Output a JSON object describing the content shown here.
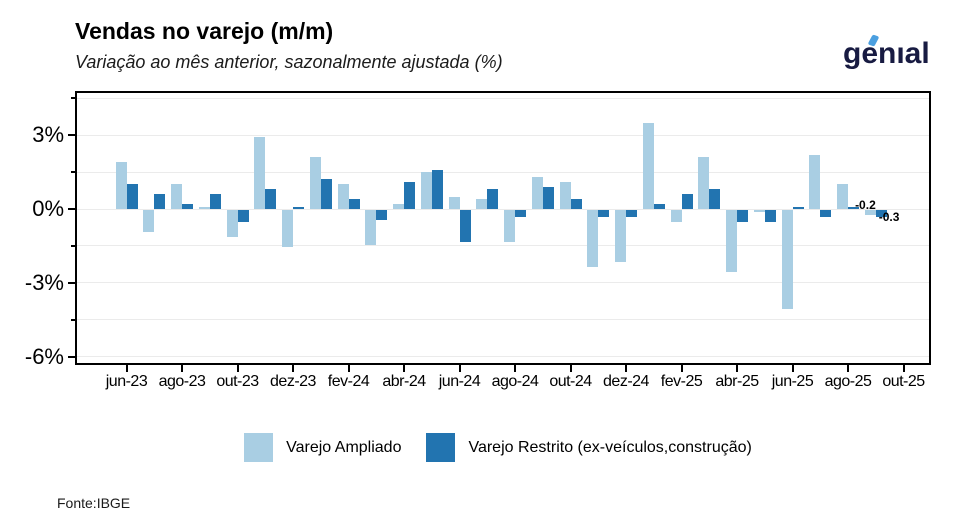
{
  "header": {
    "title": "Vendas no varejo (m/m)",
    "subtitle": "Variação ao mês anterior, sazonalmente ajustada (%)",
    "logo_text": "genıal"
  },
  "footer": {
    "source": "Fonte:IBGE"
  },
  "colors": {
    "ampliado": "#a9cee3",
    "restrito": "#2274b0",
    "logo_navy": "#181b42",
    "logo_accent": "#4b9fe0",
    "gridline": "#ebebeb",
    "axis": "#000000"
  },
  "legend": {
    "items": [
      {
        "label": "Varejo Ampliado",
        "color": "#a9cee3"
      },
      {
        "label": "Varejo Restrito (ex-veículos,construção)",
        "color": "#2274b0"
      }
    ]
  },
  "chart_data": {
    "type": "bar",
    "title": "Vendas no varejo (m/m)",
    "subtitle": "Variação ao mês anterior, sazonalmente ajustada (%)",
    "ylabel": "%",
    "ylim": [
      -6.3,
      4.75
    ],
    "grid": true,
    "legend_position": "bottom",
    "categories": [
      "jun-23",
      "jul-23",
      "ago-23",
      "set-23",
      "out-23",
      "nov-23",
      "dez-23",
      "jan-24",
      "fev-24",
      "mar-24",
      "abr-24",
      "mai-24",
      "jun-24",
      "jul-24",
      "ago-24",
      "set-24",
      "out-24",
      "nov-24",
      "dez-24",
      "jan-25",
      "fev-25",
      "mar-25",
      "abr-25",
      "mai-25",
      "jun-25",
      "jul-25",
      "ago-25",
      "set-25",
      "out-25"
    ],
    "x_tick_labels": [
      "jun-23",
      "ago-23",
      "out-23",
      "dez-23",
      "fev-24",
      "abr-24",
      "jun-24",
      "ago-24",
      "out-24",
      "dez-24",
      "fev-25",
      "abr-25",
      "jun-25",
      "ago-25",
      "out-25"
    ],
    "series": [
      {
        "name": "Varejo Ampliado",
        "color": "#a9cee3",
        "values": [
          1.9,
          -0.9,
          1.0,
          0.1,
          -1.1,
          2.9,
          -1.5,
          2.1,
          1.0,
          -1.4,
          0.2,
          1.5,
          0.5,
          0.4,
          -1.3,
          1.3,
          1.1,
          -2.3,
          -2.1,
          3.5,
          -0.5,
          2.1,
          -2.5,
          -0.1,
          -4.0,
          2.2,
          1.0,
          -0.2,
          null
        ]
      },
      {
        "name": "Varejo Restrito (ex-veículos,construção)",
        "color": "#2274b0",
        "values": [
          1.0,
          0.6,
          0.2,
          0.6,
          -0.5,
          0.8,
          0.1,
          1.2,
          0.4,
          -0.4,
          1.1,
          1.6,
          -1.3,
          0.8,
          -0.3,
          0.9,
          0.4,
          -0.3,
          -0.3,
          0.2,
          0.6,
          0.8,
          -0.5,
          -0.5,
          0.1,
          -0.3,
          0.1,
          -0.3,
          null
        ]
      }
    ],
    "y_axis": {
      "major": [
        {
          "label": "3%",
          "value": 3
        },
        {
          "label": "0%",
          "value": 0
        },
        {
          "label": "-3%",
          "value": -3
        },
        {
          "label": "-6%",
          "value": -6
        }
      ],
      "minor_values": [
        4.5,
        1.5,
        -1.5,
        -4.5
      ],
      "gridline_values": [
        4.5,
        3,
        1.5,
        0,
        -1.5,
        -3,
        -4.5,
        -6
      ]
    },
    "annotations": [
      {
        "text": "-0.2",
        "month_index": 27,
        "series_index": 0
      },
      {
        "text": "-0.3",
        "month_index": 27,
        "series_index": 1
      }
    ]
  }
}
